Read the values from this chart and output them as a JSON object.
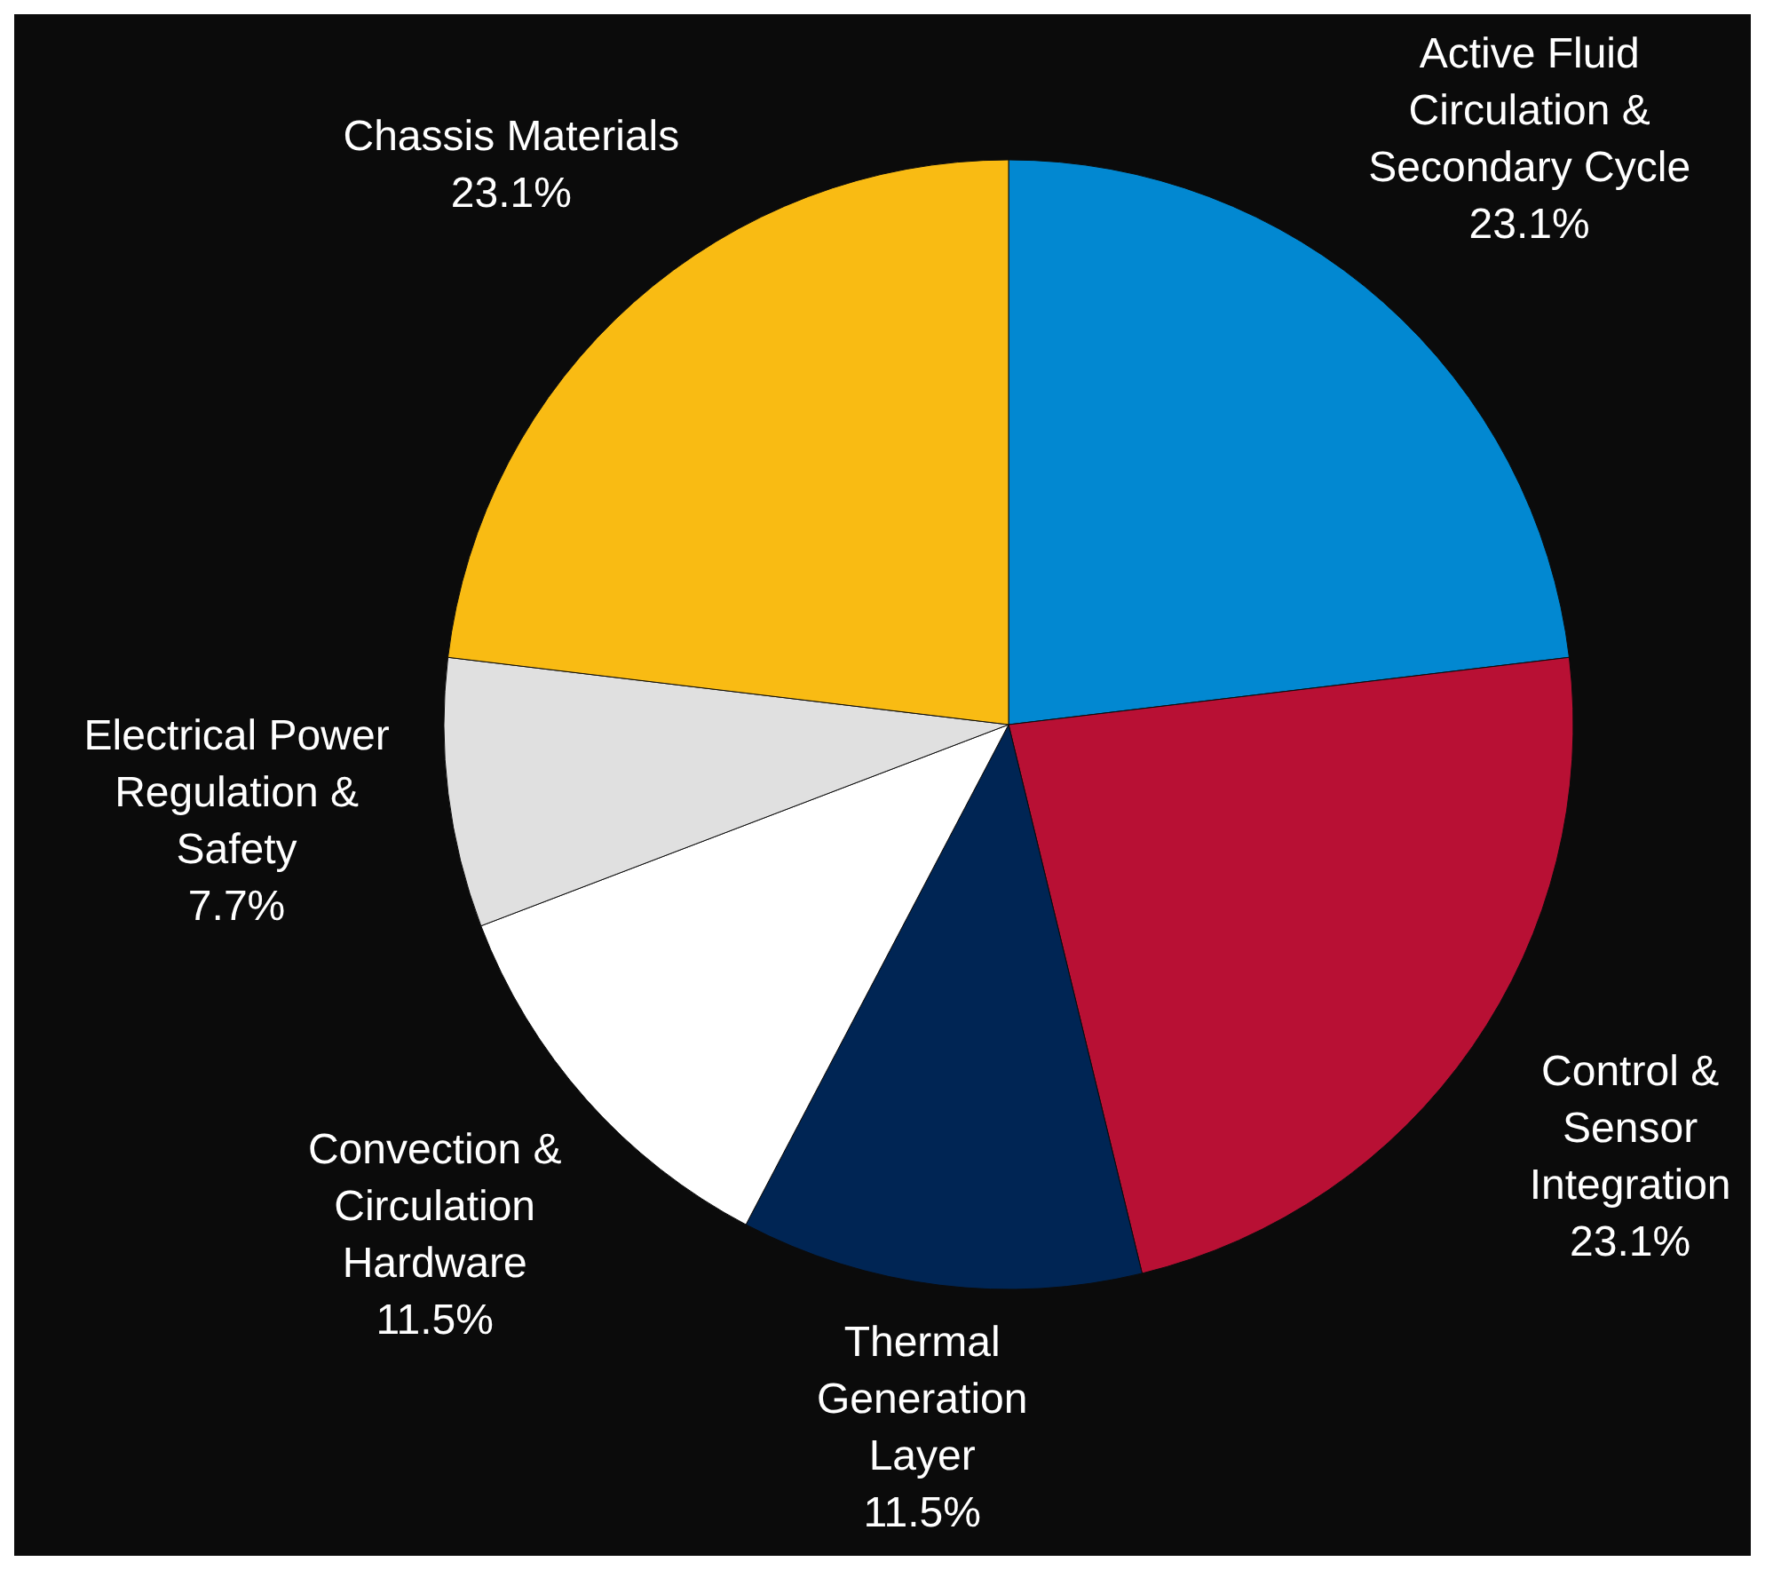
{
  "chart_data": {
    "type": "pie",
    "categories": [
      "Active Fluid\nCirculation &\nSecondary Cycle",
      "Control &\nSensor\nIntegration",
      "Thermal\nGeneration\nLayer",
      "Convection &\nCirculation\nHardware",
      "Electrical Power\nRegulation &\nSafety",
      "Chassis Materials"
    ],
    "values": [
      23.1,
      23.1,
      11.5,
      11.5,
      7.7,
      23.1
    ],
    "colors": [
      "#0288d1",
      "#b81034",
      "#002554",
      "#ffffff",
      "#e0e0e0",
      "#f9bb13"
    ],
    "value_labels": [
      "23.1%",
      "23.1%",
      "11.5%",
      "11.5%",
      "7.7%",
      "23.1%"
    ]
  }
}
